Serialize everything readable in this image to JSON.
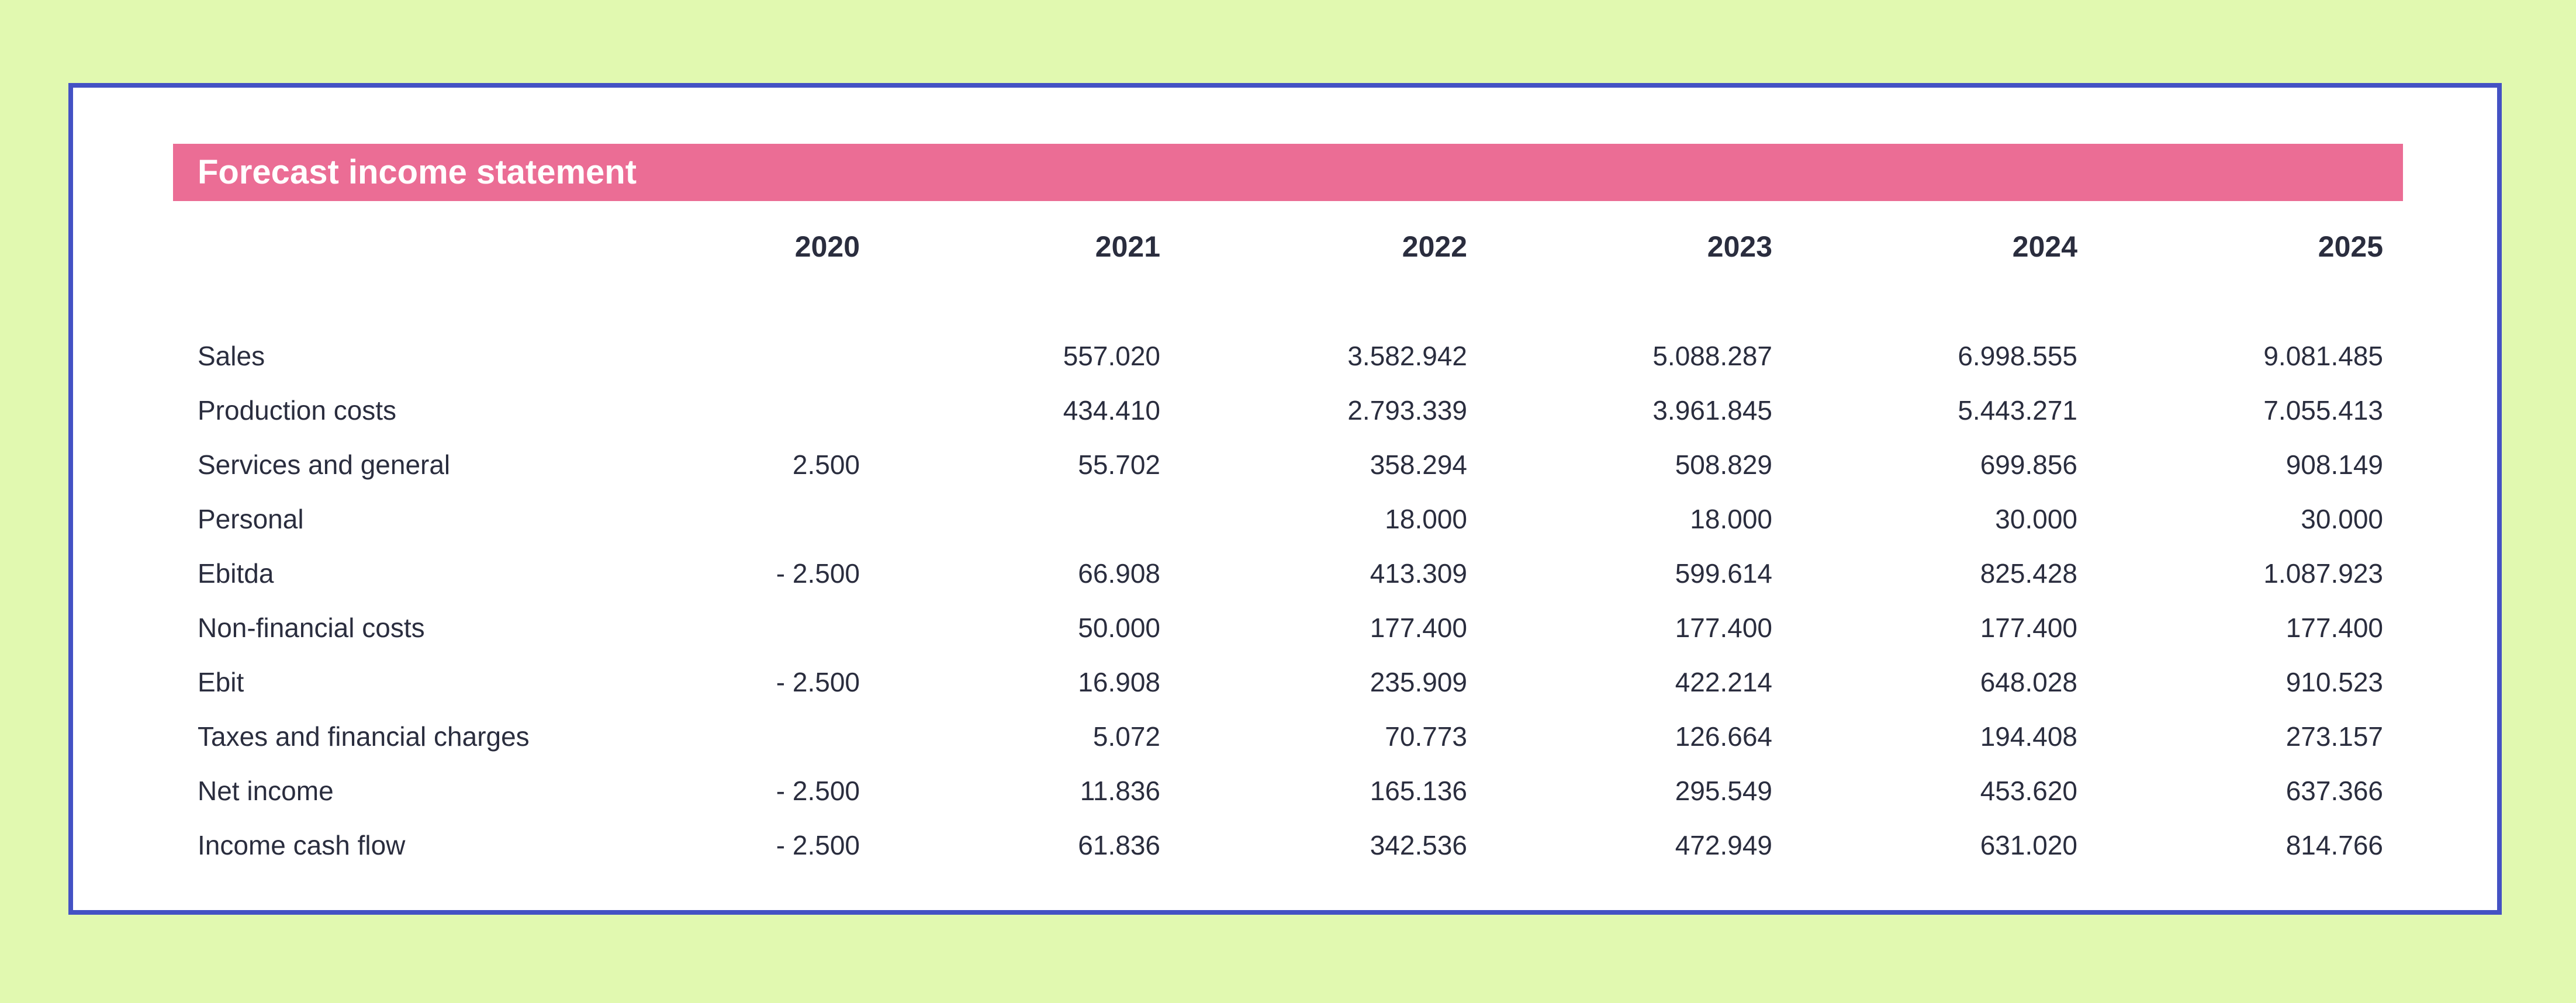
{
  "title": "Forecast income statement",
  "years": [
    "2020",
    "2021",
    "2022",
    "2023",
    "2024",
    "2025"
  ],
  "rows": [
    {
      "label": "Sales",
      "values": [
        "",
        "557.020",
        "3.582.942",
        "5.088.287",
        "6.998.555",
        "9.081.485"
      ]
    },
    {
      "label": "Production costs",
      "values": [
        "",
        "434.410",
        "2.793.339",
        "3.961.845",
        "5.443.271",
        "7.055.413"
      ]
    },
    {
      "label": "Services and general",
      "values": [
        "2.500",
        "55.702",
        "358.294",
        "508.829",
        "699.856",
        "908.149"
      ]
    },
    {
      "label": "Personal",
      "values": [
        "",
        "",
        "18.000",
        "18.000",
        "30.000",
        "30.000"
      ]
    },
    {
      "label": "Ebitda",
      "values": [
        "- 2.500",
        "66.908",
        "413.309",
        "599.614",
        "825.428",
        "1.087.923"
      ]
    },
    {
      "label": "Non-financial costs",
      "values": [
        "",
        "50.000",
        "177.400",
        "177.400",
        "177.400",
        "177.400"
      ]
    },
    {
      "label": "Ebit",
      "values": [
        "- 2.500",
        "16.908",
        "235.909",
        "422.214",
        "648.028",
        "910.523"
      ]
    },
    {
      "label": "Taxes and financial charges",
      "values": [
        "",
        "5.072",
        "70.773",
        "126.664",
        "194.408",
        "273.157"
      ]
    },
    {
      "label": "Net income",
      "values": [
        "- 2.500",
        "11.836",
        "165.136",
        "295.549",
        "453.620",
        "637.366"
      ]
    },
    {
      "label": "Income cash flow",
      "values": [
        "- 2.500",
        "61.836",
        "342.536",
        "472.949",
        "631.020",
        "814.766"
      ]
    }
  ]
}
